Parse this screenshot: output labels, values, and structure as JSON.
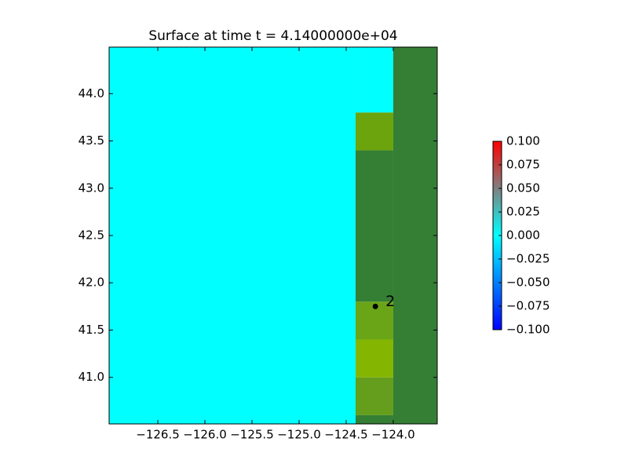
{
  "chart_data": {
    "type": "heatmap",
    "title": "Surface at time t = 4.14000000e+04",
    "xlim": [
      -127.017,
      -123.533
    ],
    "ylim": [
      40.508,
      44.492
    ],
    "xticks": [
      {
        "value": -126.5,
        "label": "−126.5"
      },
      {
        "value": -126.0,
        "label": "−126.0"
      },
      {
        "value": -125.5,
        "label": "−125.5"
      },
      {
        "value": -125.0,
        "label": "−125.0"
      },
      {
        "value": -124.5,
        "label": "−124.5"
      },
      {
        "value": -124.0,
        "label": "−124.0"
      }
    ],
    "yticks": [
      {
        "value": 41.0,
        "label": "41.0"
      },
      {
        "value": 41.5,
        "label": "41.5"
      },
      {
        "value": 42.0,
        "label": "42.0"
      },
      {
        "value": 42.5,
        "label": "42.5"
      },
      {
        "value": 43.0,
        "label": "43.0"
      },
      {
        "value": 43.5,
        "label": "43.5"
      },
      {
        "value": 44.0,
        "label": "44.0"
      }
    ],
    "cells": [
      {
        "x": [
          -127.017,
          -124.4
        ],
        "y": [
          40.508,
          44.492
        ],
        "color": "#00ffff"
      },
      {
        "x": [
          -124.4,
          -124.0
        ],
        "y": [
          43.8,
          44.492
        ],
        "color": "#00ffff"
      },
      {
        "x": [
          -124.4,
          -124.0
        ],
        "y": [
          43.4,
          43.8
        ],
        "color": "#6ca40e"
      },
      {
        "x": [
          -124.4,
          -124.0
        ],
        "y": [
          41.8,
          43.4
        ],
        "color": "#357f35"
      },
      {
        "x": [
          -124.4,
          -124.0
        ],
        "y": [
          41.4,
          41.8
        ],
        "color": "#6aa518"
      },
      {
        "x": [
          -124.4,
          -124.0
        ],
        "y": [
          41.0,
          41.4
        ],
        "color": "#84b500"
      },
      {
        "x": [
          -124.4,
          -124.0
        ],
        "y": [
          40.6,
          41.0
        ],
        "color": "#649e1c"
      },
      {
        "x": [
          -124.4,
          -124.0
        ],
        "y": [
          40.508,
          40.6
        ],
        "color": "#357f35"
      },
      {
        "x": [
          -124.0,
          -123.533
        ],
        "y": [
          40.508,
          44.492
        ],
        "color": "#357f35"
      }
    ],
    "gauges": [
      {
        "x": -124.19,
        "y": 41.75,
        "label": "2"
      }
    ],
    "colorbar": {
      "lim": [
        -0.1,
        0.1
      ],
      "ticks": [
        {
          "value": 0.1,
          "label": "0.100"
        },
        {
          "value": 0.075,
          "label": "0.075"
        },
        {
          "value": 0.05,
          "label": "0.050"
        },
        {
          "value": 0.025,
          "label": "0.025"
        },
        {
          "value": 0.0,
          "label": "0.000"
        },
        {
          "value": -0.025,
          "label": "−0.025"
        },
        {
          "value": -0.05,
          "label": "−0.050"
        },
        {
          "value": -0.075,
          "label": "−0.075"
        },
        {
          "value": -0.1,
          "label": "−0.100"
        }
      ],
      "stops": [
        {
          "value": -0.1,
          "color": "#0000ff"
        },
        {
          "value": 0.0,
          "color": "#00ffff"
        },
        {
          "value": 0.05,
          "color": "#808080"
        },
        {
          "value": 0.1,
          "color": "#ff0000"
        }
      ]
    }
  }
}
